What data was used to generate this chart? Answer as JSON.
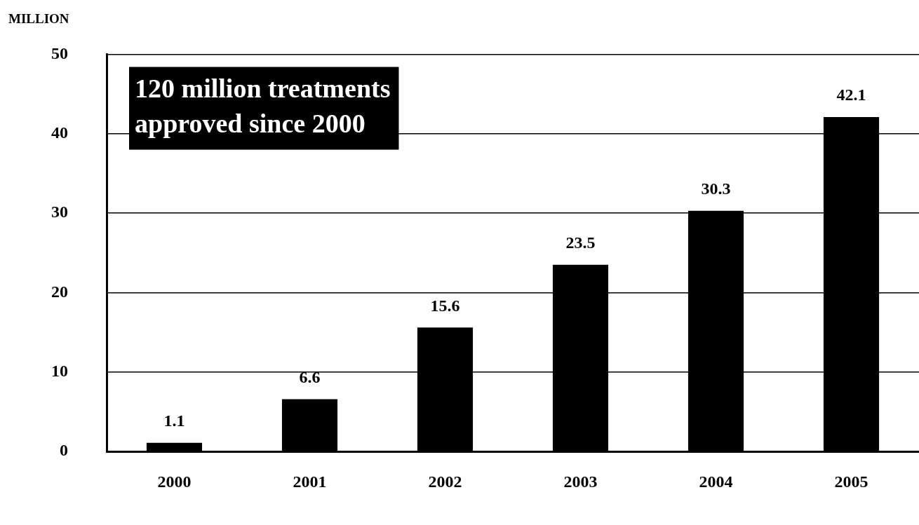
{
  "chart_data": {
    "type": "bar",
    "ylabel": "MILLION",
    "categories": [
      "2000",
      "2001",
      "2002",
      "2003",
      "2004",
      "2005"
    ],
    "values": [
      1.1,
      6.6,
      15.6,
      23.5,
      30.3,
      42.1
    ],
    "color": "#000000",
    "ylim": [
      0,
      50
    ],
    "yticks": [
      0,
      10,
      20,
      30,
      40,
      50
    ],
    "grid": "y",
    "data_labels": true,
    "legend": false,
    "annotations": [
      "120 million treatments approved since 2000"
    ]
  }
}
